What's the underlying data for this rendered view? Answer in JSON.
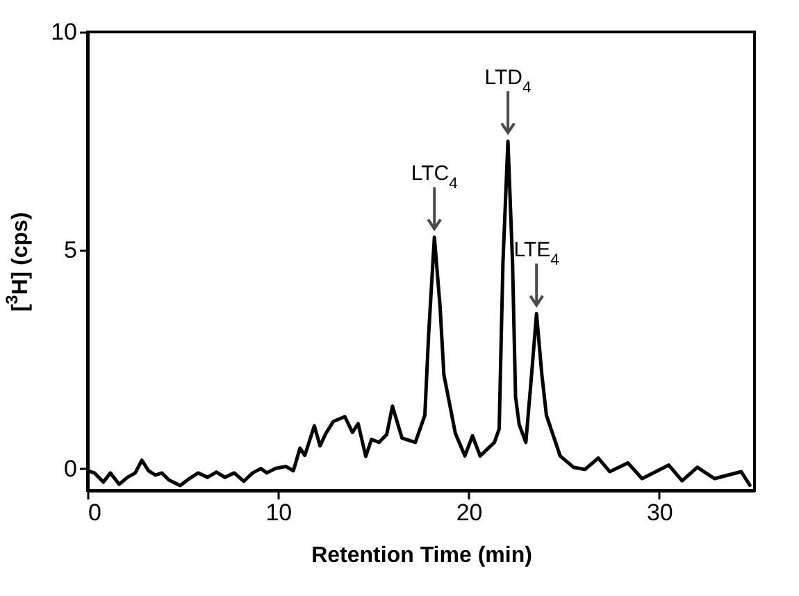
{
  "chart_data": {
    "type": "line",
    "xlabel": "Retention Time  (min)",
    "ylabel": "[$^{3}$H]  (cps)",
    "xlim": [
      0,
      35
    ],
    "ylim": [
      -0.5,
      10
    ],
    "xticks": [
      0,
      10,
      20,
      30
    ],
    "yticks": [
      0,
      5,
      10
    ],
    "grid": false,
    "marker": "none",
    "line_style": "solid",
    "annotations": [
      {
        "text": "LTC$_{4}$",
        "x": 18.2,
        "y": 5.3
      },
      {
        "text": "LTD$_{4}$",
        "x": 22.06,
        "y": 7.5
      },
      {
        "text": "LTE$_{4}$",
        "x": 23.56,
        "y": 3.55
      }
    ],
    "series": [
      {
        "color": "#000000",
        "x": [
          0,
          0.36,
          0.83,
          1.2,
          1.66,
          2.1,
          2.5,
          2.85,
          3.2,
          3.56,
          3.9,
          4.27,
          4.86,
          5.34,
          5.8,
          6.3,
          6.76,
          7.2,
          7.7,
          8.2,
          8.66,
          9.1,
          9.4,
          9.85,
          10.4,
          10.8,
          11.15,
          11.4,
          11.9,
          12.2,
          12.5,
          12.9,
          13.5,
          13.9,
          14.2,
          14.6,
          14.9,
          15.3,
          15.7,
          16.0,
          16.5,
          17.2,
          17.7,
          17.9,
          18.2,
          18.5,
          18.7,
          19.3,
          19.8,
          20.2,
          20.6,
          21.35,
          21.6,
          21.8,
          22.06,
          22.3,
          22.46,
          22.65,
          23.0,
          23.3,
          23.56,
          23.84,
          24.08,
          24.8,
          25.5,
          26.1,
          26.8,
          27.4,
          28.35,
          29.1,
          30.5,
          31.2,
          32.0,
          32.9,
          34.3,
          34.75
        ],
        "values": [
          -0.05,
          -0.1,
          -0.31,
          -0.1,
          -0.36,
          -0.2,
          -0.1,
          0.19,
          -0.05,
          -0.15,
          -0.1,
          -0.26,
          -0.39,
          -0.23,
          -0.1,
          -0.2,
          -0.08,
          -0.2,
          -0.1,
          -0.29,
          -0.1,
          0,
          -0.1,
          0,
          0.05,
          -0.05,
          0.47,
          0.3,
          0.98,
          0.52,
          0.8,
          1.08,
          1.19,
          0.83,
          1.03,
          0.28,
          0.67,
          0.6,
          0.78,
          1.43,
          0.7,
          0.6,
          1.22,
          3.08,
          5.3,
          3.7,
          2.15,
          0.81,
          0.29,
          0.75,
          0.29,
          0.6,
          0.91,
          4.74,
          7.5,
          4.74,
          1.64,
          1.01,
          0.6,
          2.15,
          3.55,
          2.15,
          1.22,
          0.29,
          0.03,
          -0.02,
          0.24,
          -0.07,
          0.13,
          -0.23,
          0.08,
          -0.28,
          0.03,
          -0.23,
          -0.07,
          -0.38
        ]
      }
    ]
  }
}
